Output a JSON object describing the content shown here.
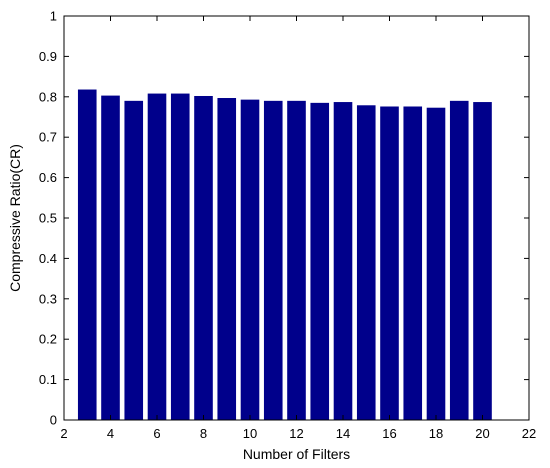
{
  "chart_data": {
    "type": "bar",
    "title": "",
    "xlabel": "Number of Filters",
    "ylabel": "Compressive Ratio(CR)",
    "x": [
      3,
      4,
      5,
      6,
      7,
      8,
      9,
      10,
      11,
      12,
      13,
      14,
      15,
      16,
      17,
      18,
      19,
      20
    ],
    "values": [
      0.818,
      0.803,
      0.79,
      0.808,
      0.808,
      0.802,
      0.797,
      0.793,
      0.79,
      0.79,
      0.785,
      0.787,
      0.779,
      0.776,
      0.776,
      0.773,
      0.79,
      0.787
    ],
    "xlim": [
      2,
      22
    ],
    "ylim": [
      0,
      1
    ],
    "xticks": [
      2,
      4,
      6,
      8,
      10,
      12,
      14,
      16,
      18,
      20,
      22
    ],
    "yticks": [
      0,
      0.1,
      0.2,
      0.3,
      0.4,
      0.5,
      0.6,
      0.7,
      0.8,
      0.9,
      1
    ],
    "bar_color": "#00008b",
    "grid": false,
    "legend": "none"
  }
}
